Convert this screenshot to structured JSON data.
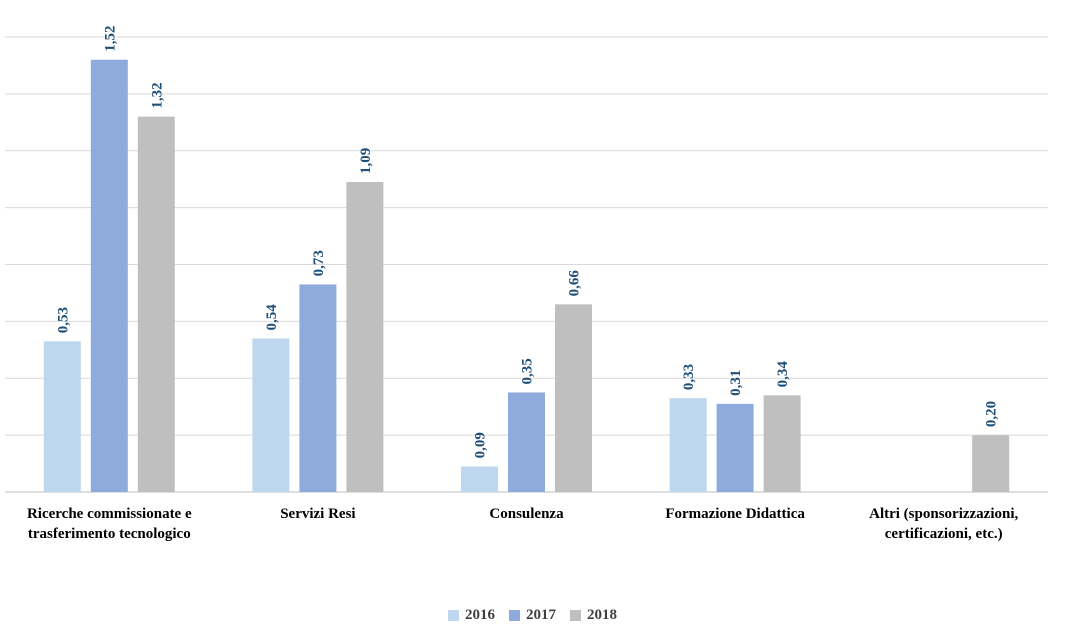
{
  "chart_data": {
    "type": "bar",
    "title": "",
    "xlabel": "",
    "ylabel": "",
    "ylim": [
      0,
      1.6
    ],
    "grid": true,
    "legend_position": "bottom",
    "categories": [
      [
        "Ricerche commissionate e",
        "trasferimento tecnologico"
      ],
      [
        "Servizi Resi"
      ],
      [
        "Consulenza"
      ],
      [
        "Formazione Didattica"
      ],
      [
        "Altri (sponsorizzazioni,",
        "certificazioni, etc.)"
      ]
    ],
    "series": [
      {
        "name": "2016",
        "color": "#bdd7ee",
        "values": [
          0.53,
          0.54,
          0.09,
          0.33,
          null
        ],
        "labels": [
          "0,53",
          "0,54",
          "0,09",
          "0,33",
          ""
        ]
      },
      {
        "name": "2017",
        "color": "#8faadc",
        "values": [
          1.52,
          0.73,
          0.35,
          0.31,
          null
        ],
        "labels": [
          "1,52",
          "0,73",
          "0,35",
          "0,31",
          ""
        ]
      },
      {
        "name": "2018",
        "color": "#bfbfbf",
        "values": [
          1.32,
          1.09,
          0.66,
          0.34,
          0.2
        ],
        "labels": [
          "1,32",
          "1,09",
          "0,66",
          "0,34",
          "0,20"
        ]
      }
    ],
    "data_label_color": "#1f4e79",
    "axis_label_color": "#000000"
  }
}
